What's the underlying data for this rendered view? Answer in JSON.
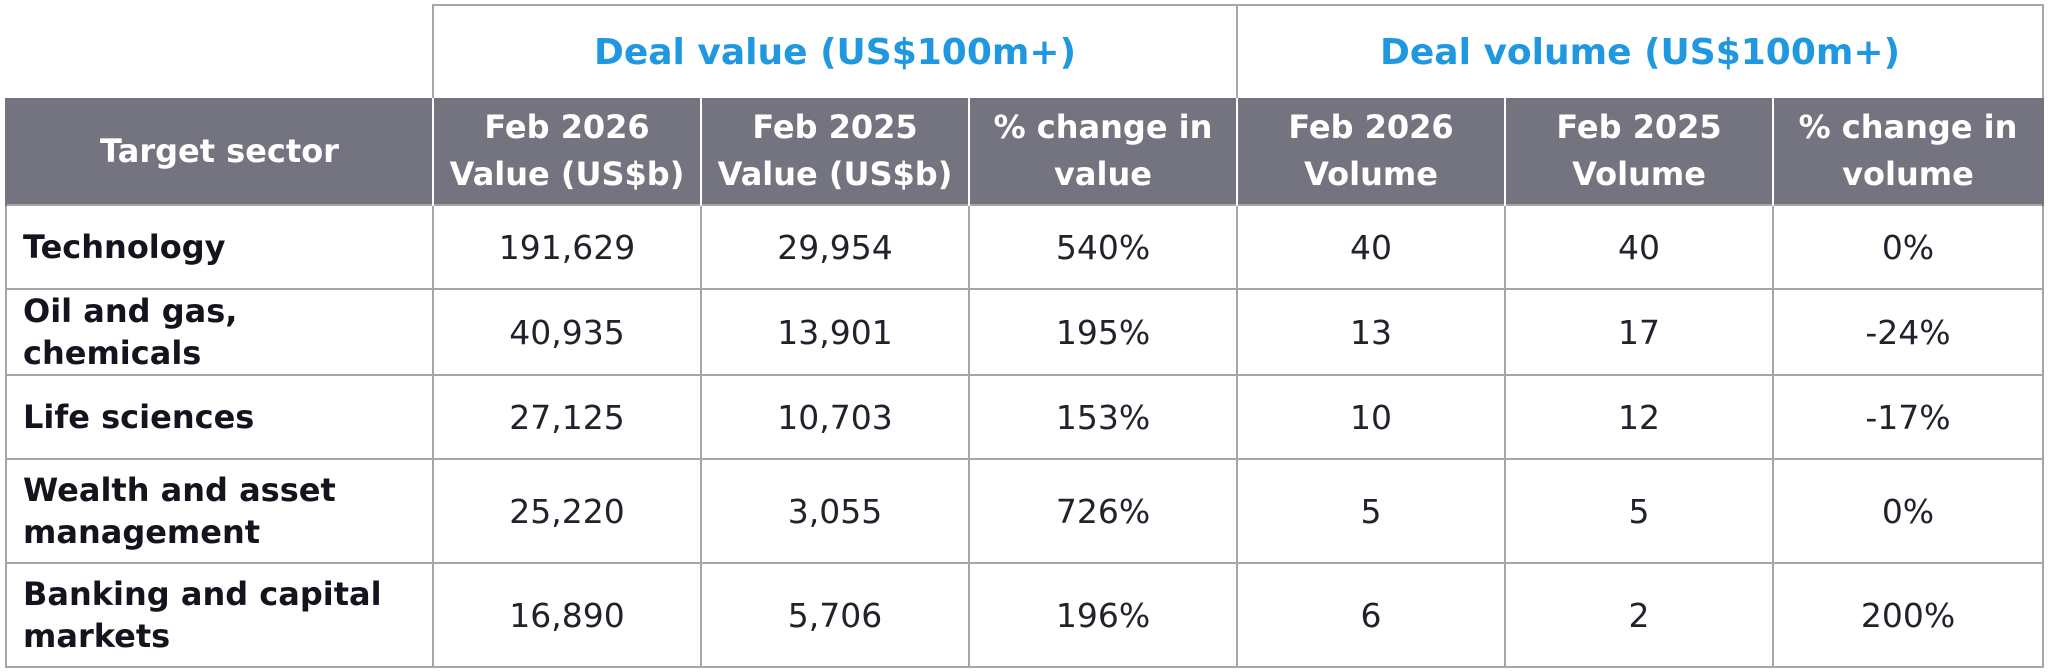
{
  "groups": {
    "value": "Deal value (US$100m+)",
    "volume": "Deal volume (US$100m+)"
  },
  "columns": {
    "sector": "Target sector",
    "value_2026": "Feb 2026 Value (US$b)",
    "value_2025": "Feb 2025 Value (US$b)",
    "value_change": "% change in value",
    "volume_2026": "Feb 2026 Volume",
    "volume_2025": "Feb 2025 Volume",
    "volume_change": "% change in volume"
  },
  "rows": [
    {
      "sector": "Technology",
      "value_2026": "191,629",
      "value_2025": "29,954",
      "value_change": "540%",
      "volume_2026": "40",
      "volume_2025": "40",
      "volume_change": "0%"
    },
    {
      "sector": "Oil and gas, chemicals",
      "value_2026": "40,935",
      "value_2025": "13,901",
      "value_change": "195%",
      "volume_2026": "13",
      "volume_2025": "17",
      "volume_change": "-24%"
    },
    {
      "sector": "Life sciences",
      "value_2026": "27,125",
      "value_2025": "10,703",
      "value_change": "153%",
      "volume_2026": "10",
      "volume_2025": "12",
      "volume_change": "-17%"
    },
    {
      "sector": "Wealth and asset management",
      "value_2026": "25,220",
      "value_2025": "3,055",
      "value_change": "726%",
      "volume_2026": "5",
      "volume_2025": "5",
      "volume_change": "0%"
    },
    {
      "sector": "Banking and capital markets",
      "value_2026": "16,890",
      "value_2025": "5,706",
      "value_change": "196%",
      "volume_2026": "6",
      "volume_2025": "2",
      "volume_change": "200%"
    }
  ],
  "colors": {
    "group_title": "#1f98e0",
    "header_bg": "#747480",
    "header_text": "#ffffff",
    "grid": "#a6a6aa",
    "sector_text": "#14141e"
  }
}
